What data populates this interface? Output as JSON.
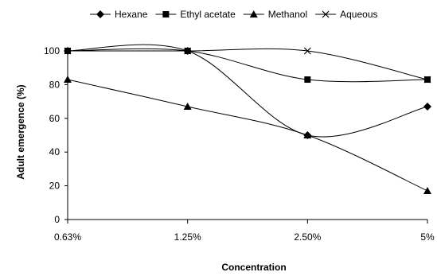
{
  "chart_data": {
    "type": "line",
    "categories": [
      "0.63%",
      "1.25%",
      "2.50%",
      "5%"
    ],
    "series": [
      {
        "name": "Hexane",
        "marker": "diamond",
        "values": [
          100,
          100,
          50,
          67
        ]
      },
      {
        "name": "Ethyl acetate",
        "marker": "square",
        "values": [
          100,
          100,
          83,
          83
        ]
      },
      {
        "name": "Methanol",
        "marker": "triangle",
        "values": [
          83,
          67,
          50,
          17
        ]
      },
      {
        "name": "Aqueous",
        "marker": "x",
        "values": [
          100,
          100,
          100,
          83
        ]
      }
    ],
    "title": "",
    "xlabel": "Concentration",
    "ylabel": "Adult emergence (%)",
    "ylim": [
      0,
      120
    ],
    "yticks": [
      0,
      20,
      40,
      60,
      80,
      100
    ],
    "grid": false,
    "smoothed": true,
    "legend_position": "top",
    "line_color": "#000000"
  }
}
